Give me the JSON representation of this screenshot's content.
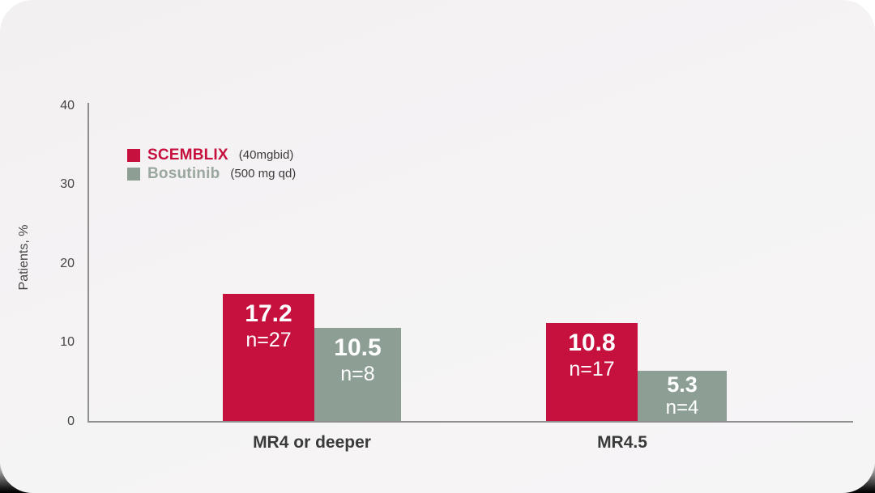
{
  "chart_data": {
    "type": "bar",
    "categories": [
      "MR4 or deeper",
      "MR4.5"
    ],
    "series": [
      {
        "name": "SCEMBLIX",
        "dose": "(40mgbid)",
        "color": "#c6103e",
        "values": [
          17.2,
          10.8
        ],
        "n": [
          27,
          17
        ],
        "value_labels": [
          "17.2",
          "10.8"
        ],
        "n_labels": [
          "n=27",
          "n=17"
        ]
      },
      {
        "name": "Bosutinib",
        "dose": "(500 mg qd)",
        "color": "#8d9e94",
        "values": [
          10.5,
          5.3
        ],
        "n": [
          8,
          4
        ],
        "value_labels": [
          "10.5",
          "5.3"
        ],
        "n_labels": [
          "n=8",
          "n=4"
        ]
      }
    ],
    "ylabel": "Patients, %",
    "ylim": [
      0,
      40
    ],
    "yticks": [
      "0",
      "10",
      "20",
      "30",
      "40"
    ],
    "grid": false,
    "legend_position": "upper-left inside plot"
  },
  "colors": {
    "scemblix_red": "#c6103e",
    "bosutinib_gray": "#8d9e94",
    "axis_gray": "#8f8f8f",
    "card_background": "#f4f2f3",
    "backdrop_top": "#ffffff",
    "backdrop_bottom": "#000000"
  }
}
